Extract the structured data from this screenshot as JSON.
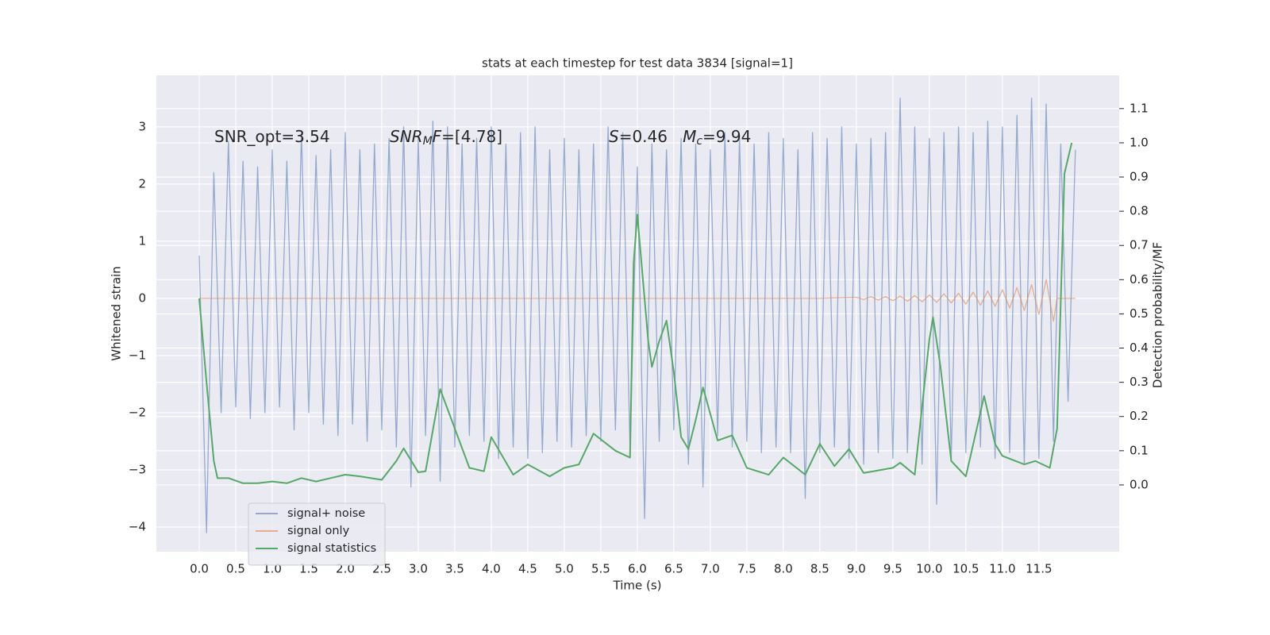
{
  "chart_data": {
    "type": "line",
    "title": "stats at each timestep for test data 3834 [signal=1]",
    "xlabel": "Time (s)",
    "ylabel": "Whitened strain",
    "y2label": "Detection probability/MF",
    "xlim": [
      -0.587,
      12.6
    ],
    "ylim": [
      -4.43,
      3.9
    ],
    "y2lim": [
      -0.195,
      1.197
    ],
    "xticks": [
      {
        "value": 0,
        "label": "0.0"
      },
      0.5,
      {
        "value": 1,
        "label": "1.0"
      },
      1.5,
      {
        "value": 2,
        "label": "2.0"
      },
      2.5,
      {
        "value": 3,
        "label": "3.0"
      },
      3.5,
      {
        "value": 4,
        "label": "4.0"
      },
      4.5,
      {
        "value": 5,
        "label": "5.0"
      },
      5.5,
      {
        "value": 6,
        "label": "6.0"
      },
      6.5,
      {
        "value": 7,
        "label": "7.0"
      },
      7.5,
      {
        "value": 8,
        "label": "8.0"
      },
      8.5,
      {
        "value": 9,
        "label": "9.0"
      },
      9.5,
      {
        "value": 10,
        "label": "10.0"
      },
      10.5,
      {
        "value": 11,
        "label": "11.0"
      },
      11.5
    ],
    "yticks": [
      {
        "value": -4,
        "label": "−4"
      },
      {
        "value": -3,
        "label": "−3"
      },
      {
        "value": -2,
        "label": "−2"
      },
      {
        "value": -1,
        "label": "−1"
      },
      0,
      1,
      2,
      3
    ],
    "y2ticks": [
      {
        "value": 0,
        "label": "0.0"
      },
      0.1,
      0.2,
      0.3,
      0.4,
      0.5,
      0.6,
      0.7,
      0.8,
      0.9,
      {
        "value": 1,
        "label": "1.0"
      },
      1.1
    ],
    "grid": true,
    "legend": "lower left",
    "annotations": [
      {
        "parts": [
          {
            "text": "SNR_opt=3.54",
            "style": "normal"
          }
        ]
      },
      {
        "parts": [
          {
            "text": "SNR",
            "style": "italic"
          },
          {
            "text": "M",
            "style": "italic-sub"
          },
          {
            "text": "F",
            "style": "italic"
          },
          {
            "text": "=[4.78]",
            "style": "normal"
          }
        ]
      },
      {
        "parts": [
          {
            "text": "S",
            "style": "italic"
          },
          {
            "text": "=0.46   ",
            "style": "normal"
          },
          {
            "text": "M",
            "style": "italic"
          },
          {
            "text": "c",
            "style": "italic-sub"
          },
          {
            "text": "=9.94",
            "style": "normal"
          }
        ]
      }
    ],
    "series": [
      {
        "name": "signal+ noise",
        "color": "#4c72b0",
        "opacity": 0.55,
        "axis": "y",
        "x": [
          0.0,
          0.1,
          0.2,
          0.3,
          0.4,
          0.5,
          0.6,
          0.7,
          0.8,
          0.9,
          1.0,
          1.1,
          1.2,
          1.3,
          1.4,
          1.5,
          1.6,
          1.7,
          1.8,
          1.9,
          2.0,
          2.1,
          2.2,
          2.3,
          2.4,
          2.5,
          2.6,
          2.7,
          2.8,
          2.9,
          3.0,
          3.1,
          3.2,
          3.3,
          3.4,
          3.5,
          3.6,
          3.7,
          3.8,
          3.9,
          4.0,
          4.1,
          4.2,
          4.3,
          4.4,
          4.5,
          4.6,
          4.7,
          4.8,
          4.9,
          5.0,
          5.1,
          5.2,
          5.3,
          5.4,
          5.5,
          5.6,
          5.7,
          5.8,
          5.9,
          6.0,
          6.1,
          6.2,
          6.3,
          6.4,
          6.5,
          6.6,
          6.7,
          6.8,
          6.9,
          7.0,
          7.1,
          7.2,
          7.3,
          7.4,
          7.5,
          7.6,
          7.7,
          7.8,
          7.9,
          8.0,
          8.1,
          8.2,
          8.3,
          8.4,
          8.5,
          8.6,
          8.7,
          8.8,
          8.9,
          9.0,
          9.1,
          9.2,
          9.3,
          9.4,
          9.5,
          9.6,
          9.7,
          9.8,
          9.9,
          10.0,
          10.1,
          10.2,
          10.3,
          10.4,
          10.5,
          10.6,
          10.7,
          10.8,
          10.9,
          11.0,
          11.1,
          11.2,
          11.3,
          11.4,
          11.5,
          11.6,
          11.7,
          11.8,
          11.9,
          12.0
        ],
        "values": [
          0.75,
          -4.1,
          2.2,
          -2.0,
          2.75,
          -1.9,
          2.4,
          -2.1,
          2.3,
          -2.0,
          2.6,
          -1.9,
          2.4,
          -2.3,
          2.9,
          -2.0,
          2.5,
          -2.2,
          2.6,
          -2.4,
          2.9,
          -2.2,
          2.6,
          -2.5,
          2.7,
          -2.3,
          2.8,
          -2.6,
          3.0,
          -3.3,
          2.8,
          -2.4,
          3.1,
          -3.2,
          3.0,
          -2.6,
          2.7,
          -2.4,
          2.8,
          -2.5,
          3.0,
          -2.8,
          2.7,
          -2.6,
          2.9,
          -2.8,
          3.0,
          -2.7,
          2.6,
          -2.5,
          2.8,
          -2.6,
          2.6,
          -2.4,
          2.7,
          -2.5,
          3.0,
          -2.3,
          2.9,
          -2.6,
          2.3,
          -3.85,
          2.7,
          -2.5,
          2.6,
          -2.3,
          2.8,
          -2.9,
          2.7,
          -3.3,
          2.6,
          -2.4,
          2.9,
          -2.6,
          2.8,
          -2.5,
          2.7,
          -2.7,
          2.9,
          -2.6,
          2.8,
          -2.7,
          2.6,
          -3.5,
          2.9,
          -2.7,
          2.8,
          -2.6,
          3.0,
          -2.8,
          2.7,
          -2.9,
          2.8,
          -2.7,
          2.9,
          -2.8,
          3.5,
          -2.7,
          3.0,
          -2.9,
          2.8,
          -3.6,
          2.9,
          -2.8,
          3.0,
          -2.7,
          2.9,
          -2.6,
          3.1,
          -2.8,
          3.0,
          -2.7,
          3.2,
          -2.9,
          3.5,
          -2.8,
          3.4,
          -2.5,
          2.7,
          -1.8,
          2.6
        ]
      },
      {
        "name": "signal only",
        "color": "#dd8452",
        "opacity": 0.6,
        "axis": "y",
        "x": [
          0.0,
          8.5,
          9.0,
          9.1,
          9.2,
          9.3,
          9.4,
          9.5,
          9.6,
          9.7,
          9.8,
          9.9,
          10.0,
          10.1,
          10.2,
          10.3,
          10.4,
          10.5,
          10.6,
          10.7,
          10.8,
          10.9,
          11.0,
          11.1,
          11.2,
          11.3,
          11.4,
          11.5,
          11.6,
          11.7,
          11.75,
          12.0
        ],
        "values": [
          0,
          0,
          0.02,
          -0.02,
          0.03,
          -0.03,
          0.03,
          -0.04,
          0.04,
          -0.05,
          0.05,
          -0.06,
          0.06,
          -0.07,
          0.08,
          -0.08,
          0.09,
          -0.1,
          0.11,
          -0.12,
          0.13,
          -0.14,
          0.15,
          -0.17,
          0.19,
          -0.21,
          0.24,
          -0.28,
          0.33,
          -0.4,
          0,
          0
        ]
      },
      {
        "name": "signal statistics",
        "color": "#55a868",
        "opacity": 1,
        "axis": "y2",
        "x": [
          0.0,
          0.1,
          0.2,
          0.25,
          0.4,
          0.6,
          0.8,
          1.0,
          1.2,
          1.4,
          1.6,
          1.8,
          2.0,
          2.2,
          2.5,
          2.7,
          2.8,
          3.0,
          3.1,
          3.3,
          3.5,
          3.7,
          3.9,
          4.0,
          4.3,
          4.5,
          4.8,
          5.0,
          5.2,
          5.4,
          5.7,
          5.9,
          5.95,
          6.0,
          6.15,
          6.2,
          6.3,
          6.4,
          6.5,
          6.6,
          6.7,
          6.8,
          6.9,
          7.1,
          7.3,
          7.5,
          7.8,
          8.0,
          8.3,
          8.5,
          8.7,
          8.9,
          9.1,
          9.5,
          9.6,
          9.8,
          10.0,
          10.05,
          10.15,
          10.3,
          10.5,
          10.65,
          10.75,
          10.9,
          11.0,
          11.3,
          11.45,
          11.65,
          11.75,
          11.85,
          11.95
        ],
        "values": [
          0.545,
          0.3,
          0.07,
          0.02,
          0.02,
          0.005,
          0.005,
          0.01,
          0.005,
          0.02,
          0.01,
          0.02,
          0.03,
          0.025,
          0.015,
          0.07,
          0.107,
          0.037,
          0.04,
          0.28,
          0.165,
          0.05,
          0.04,
          0.14,
          0.03,
          0.06,
          0.025,
          0.05,
          0.06,
          0.15,
          0.1,
          0.08,
          0.65,
          0.79,
          0.42,
          0.345,
          0.42,
          0.48,
          0.33,
          0.14,
          0.105,
          0.19,
          0.285,
          0.13,
          0.145,
          0.05,
          0.03,
          0.08,
          0.03,
          0.12,
          0.055,
          0.105,
          0.035,
          0.05,
          0.065,
          0.03,
          0.425,
          0.49,
          0.35,
          0.07,
          0.025,
          0.165,
          0.26,
          0.12,
          0.085,
          0.06,
          0.07,
          0.05,
          0.165,
          0.91,
          1.0
        ]
      }
    ]
  }
}
